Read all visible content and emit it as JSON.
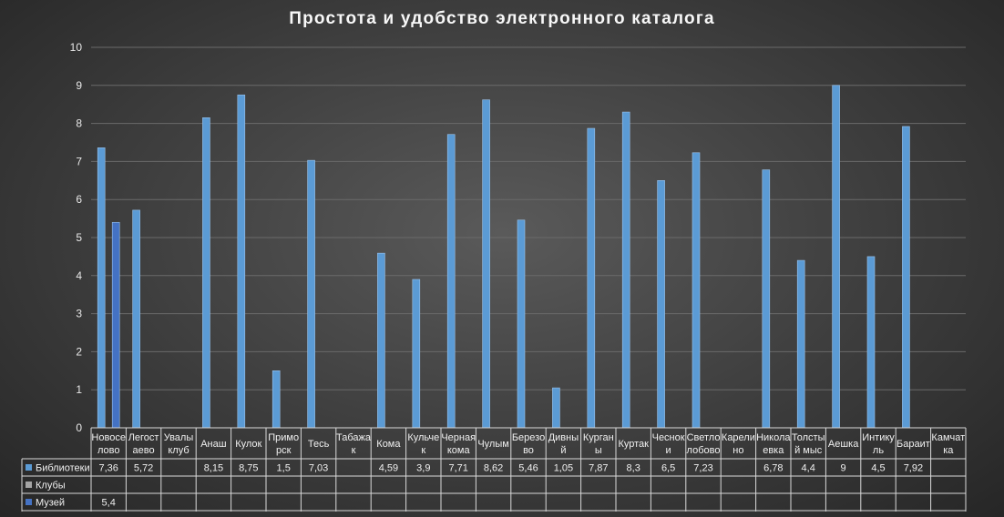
{
  "chart_data": {
    "type": "bar",
    "title": "Простота и удобство электронного каталога",
    "ylim": [
      0,
      10
    ],
    "yticks": [
      "0",
      "1",
      "2",
      "3",
      "4",
      "5",
      "6",
      "7",
      "8",
      "9",
      "10"
    ],
    "grid": true,
    "legend": "data-table",
    "categories": [
      [
        "Новосе",
        "лово"
      ],
      [
        "Легост",
        "аево"
      ],
      [
        "Увалы",
        "клуб"
      ],
      [
        "Анаш"
      ],
      [
        "Кулок"
      ],
      [
        "Примо",
        "рск"
      ],
      [
        "Тесь"
      ],
      [
        "Табажа",
        "к"
      ],
      [
        "Кома"
      ],
      [
        "Кульче",
        "к"
      ],
      [
        "Черная",
        "кома"
      ],
      [
        "Чулым"
      ],
      [
        "Березо",
        "во"
      ],
      [
        "Дивны",
        "й"
      ],
      [
        "Курган",
        "ы"
      ],
      [
        "Куртак"
      ],
      [
        "Чеснок",
        "и"
      ],
      [
        "Светло",
        "лобово"
      ],
      [
        "Карели",
        "но"
      ],
      [
        "Никола",
        "евка"
      ],
      [
        "Толсты",
        "й мыс"
      ],
      [
        "Аешка"
      ],
      [
        "Интику",
        "ль"
      ],
      [
        "Бараит"
      ],
      [
        "Камчат",
        "ка"
      ]
    ],
    "series": [
      {
        "name": "Библиотеки",
        "color": "#5b9bd5",
        "values": [
          7.36,
          5.72,
          null,
          8.15,
          8.75,
          1.5,
          7.03,
          null,
          4.59,
          3.9,
          7.71,
          8.62,
          5.46,
          1.05,
          7.87,
          8.3,
          6.5,
          7.23,
          null,
          6.78,
          4.4,
          9,
          4.5,
          7.92,
          null
        ],
        "labels": [
          "7,36",
          "5,72",
          "",
          "8,15",
          "8,75",
          "1,5",
          "7,03",
          "",
          "4,59",
          "3,9",
          "7,71",
          "8,62",
          "5,46",
          "1,05",
          "7,87",
          "8,3",
          "6,5",
          "7,23",
          "",
          "6,78",
          "4,4",
          "9",
          "4,5",
          "7,92",
          ""
        ]
      },
      {
        "name": "Клубы",
        "color": "#a5a5a5",
        "values": [
          null,
          null,
          null,
          null,
          null,
          null,
          null,
          null,
          null,
          null,
          null,
          null,
          null,
          null,
          null,
          null,
          null,
          null,
          null,
          null,
          null,
          null,
          null,
          null,
          null
        ],
        "labels": [
          "",
          "",
          "",
          "",
          "",
          "",
          "",
          "",
          "",
          "",
          "",
          "",
          "",
          "",
          "",
          "",
          "",
          "",
          "",
          "",
          "",
          "",
          "",
          "",
          ""
        ]
      },
      {
        "name": "Музей",
        "color": "#4472c4",
        "values": [
          5.4,
          null,
          null,
          null,
          null,
          null,
          null,
          null,
          null,
          null,
          null,
          null,
          null,
          null,
          null,
          null,
          null,
          null,
          null,
          null,
          null,
          null,
          null,
          null,
          null
        ],
        "labels": [
          "5,4",
          "",
          "",
          "",
          "",
          "",
          "",
          "",
          "",
          "",
          "",
          "",
          "",
          "",
          "",
          "",
          "",
          "",
          "",
          "",
          "",
          "",
          "",
          "",
          ""
        ]
      }
    ]
  }
}
